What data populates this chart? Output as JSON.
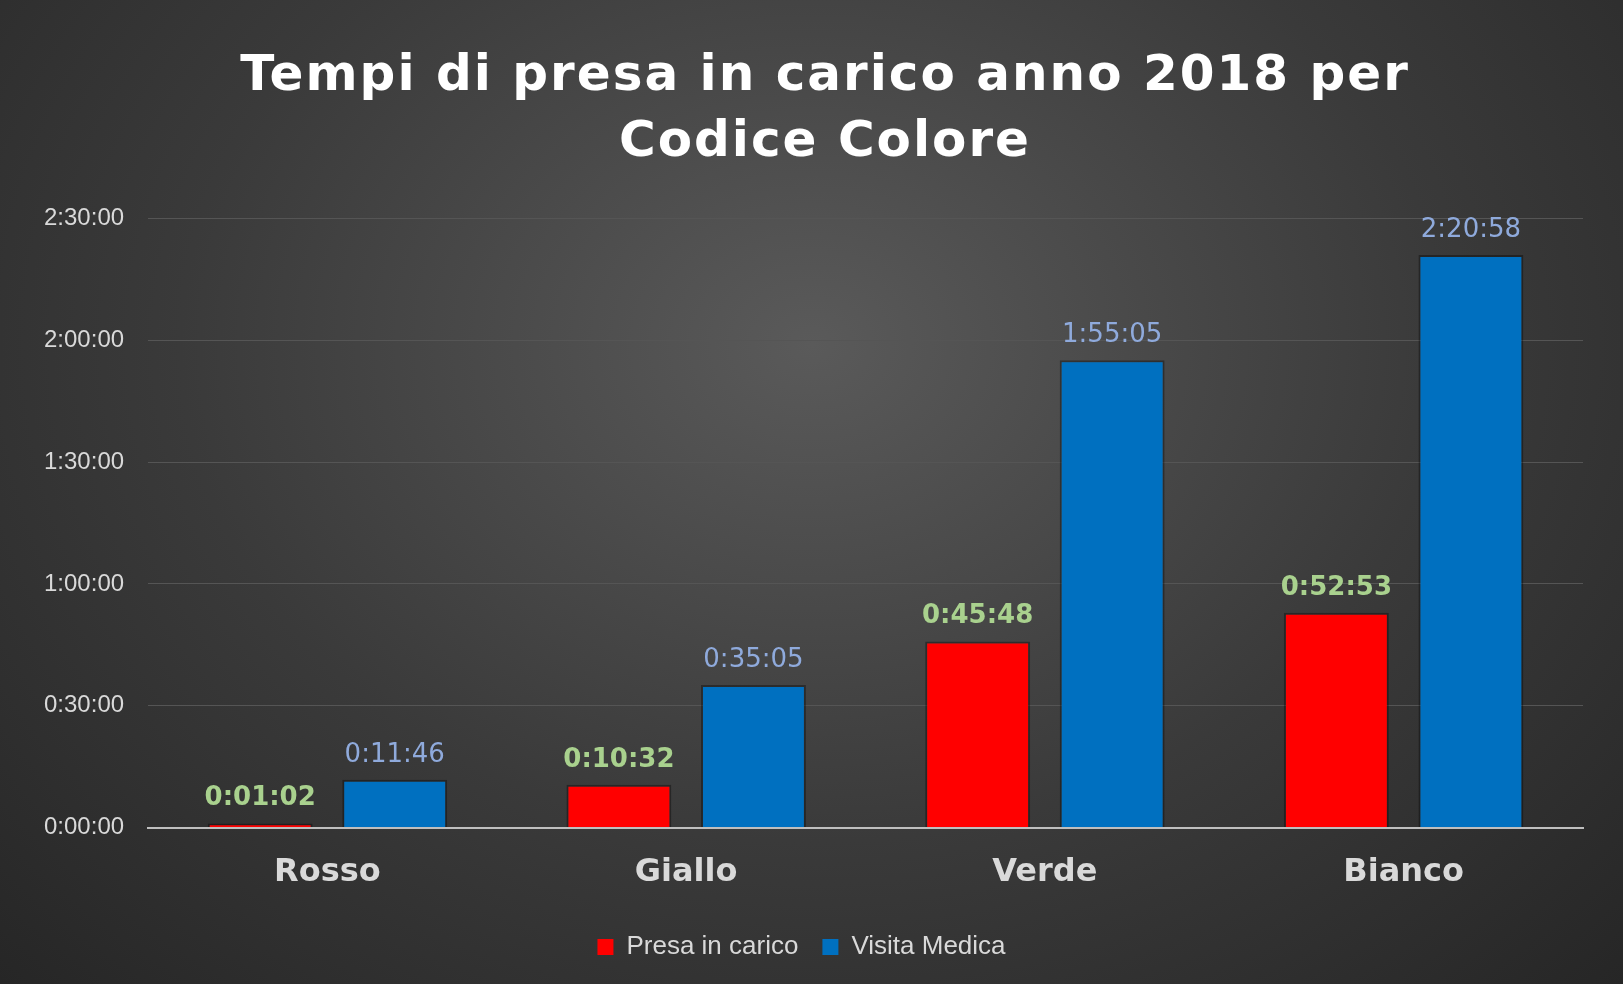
{
  "chart_data": {
    "type": "bar",
    "title": "Tempi di presa in carico anno 2018 per Codice Colore",
    "categories": [
      "Rosso",
      "Giallo",
      "Verde",
      "Bianco"
    ],
    "series": [
      {
        "name": "Presa in carico",
        "color": "#ff0000",
        "values": [
          62,
          632,
          2748,
          3173
        ],
        "value_labels": [
          "0:01:02",
          "0:10:32",
          "0:45:48",
          "0:52:53"
        ]
      },
      {
        "name": "Visita Medica",
        "color": "#0070c0",
        "values": [
          706,
          2105,
          6905,
          8458
        ],
        "value_labels": [
          "0:11:46",
          "0:35:05",
          "1:55:05",
          "2:20:58"
        ]
      }
    ],
    "ylim": [
      0,
      9000
    ],
    "yticks": [
      {
        "value": 0,
        "label": "0:00:00"
      },
      {
        "value": 1800,
        "label": "0:30:00"
      },
      {
        "value": 3600,
        "label": "1:00:00"
      },
      {
        "value": 5400,
        "label": "1:30:00"
      },
      {
        "value": 7200,
        "label": "2:00:00"
      },
      {
        "value": 9000,
        "label": "2:30:00"
      }
    ],
    "grid": "y",
    "legend": "bottom"
  }
}
